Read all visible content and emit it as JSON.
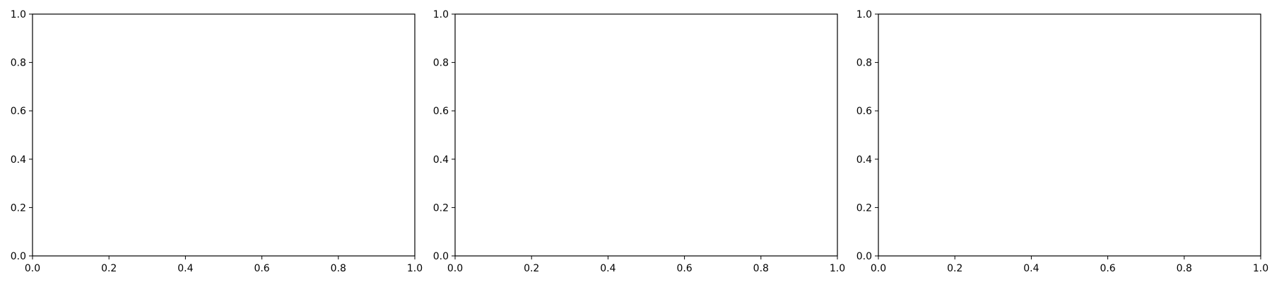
{
  "chart_data": [
    {
      "type": "line",
      "title": "",
      "xlabel": "",
      "ylabel": "",
      "xlim": [
        0,
        1
      ],
      "ylim": [
        0,
        1
      ],
      "grid": false,
      "series": [],
      "x_ticks": [
        "0.0",
        "0.2",
        "0.4",
        "0.6",
        "0.8",
        "1.0"
      ],
      "y_ticks": [
        "0.0",
        "0.2",
        "0.4",
        "0.6",
        "0.8",
        "1.0"
      ]
    },
    {
      "type": "line",
      "title": "",
      "xlabel": "",
      "ylabel": "",
      "xlim": [
        0,
        1
      ],
      "ylim": [
        0,
        1
      ],
      "grid": false,
      "series": [],
      "x_ticks": [
        "0.0",
        "0.2",
        "0.4",
        "0.6",
        "0.8",
        "1.0"
      ],
      "y_ticks": [
        "0.0",
        "0.2",
        "0.4",
        "0.6",
        "0.8",
        "1.0"
      ]
    },
    {
      "type": "line",
      "title": "",
      "xlabel": "",
      "ylabel": "",
      "xlim": [
        0,
        1
      ],
      "ylim": [
        0,
        1
      ],
      "grid": false,
      "series": [],
      "x_ticks": [
        "0.0",
        "0.2",
        "0.4",
        "0.6",
        "0.8",
        "1.0"
      ],
      "y_ticks": [
        "0.0",
        "0.2",
        "0.4",
        "0.6",
        "0.8",
        "1.0"
      ]
    }
  ]
}
